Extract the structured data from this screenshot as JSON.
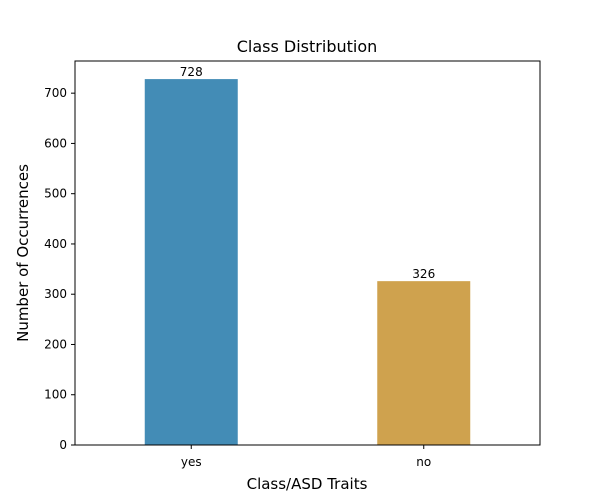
{
  "chart_data": {
    "type": "bar",
    "title": "Class Distribution",
    "xlabel": "Class/ASD Traits",
    "ylabel": "Number of Occurrences",
    "categories": [
      "yes",
      "no"
    ],
    "values": [
      728,
      326
    ],
    "data_labels": [
      "728",
      "326"
    ],
    "bar_colors": [
      "#438cb6",
      "#cfa24e"
    ],
    "ylim": [
      0,
      764
    ],
    "yticks": [
      0,
      100,
      200,
      300,
      400,
      500,
      600,
      700
    ],
    "grid": false,
    "legend": "none"
  }
}
